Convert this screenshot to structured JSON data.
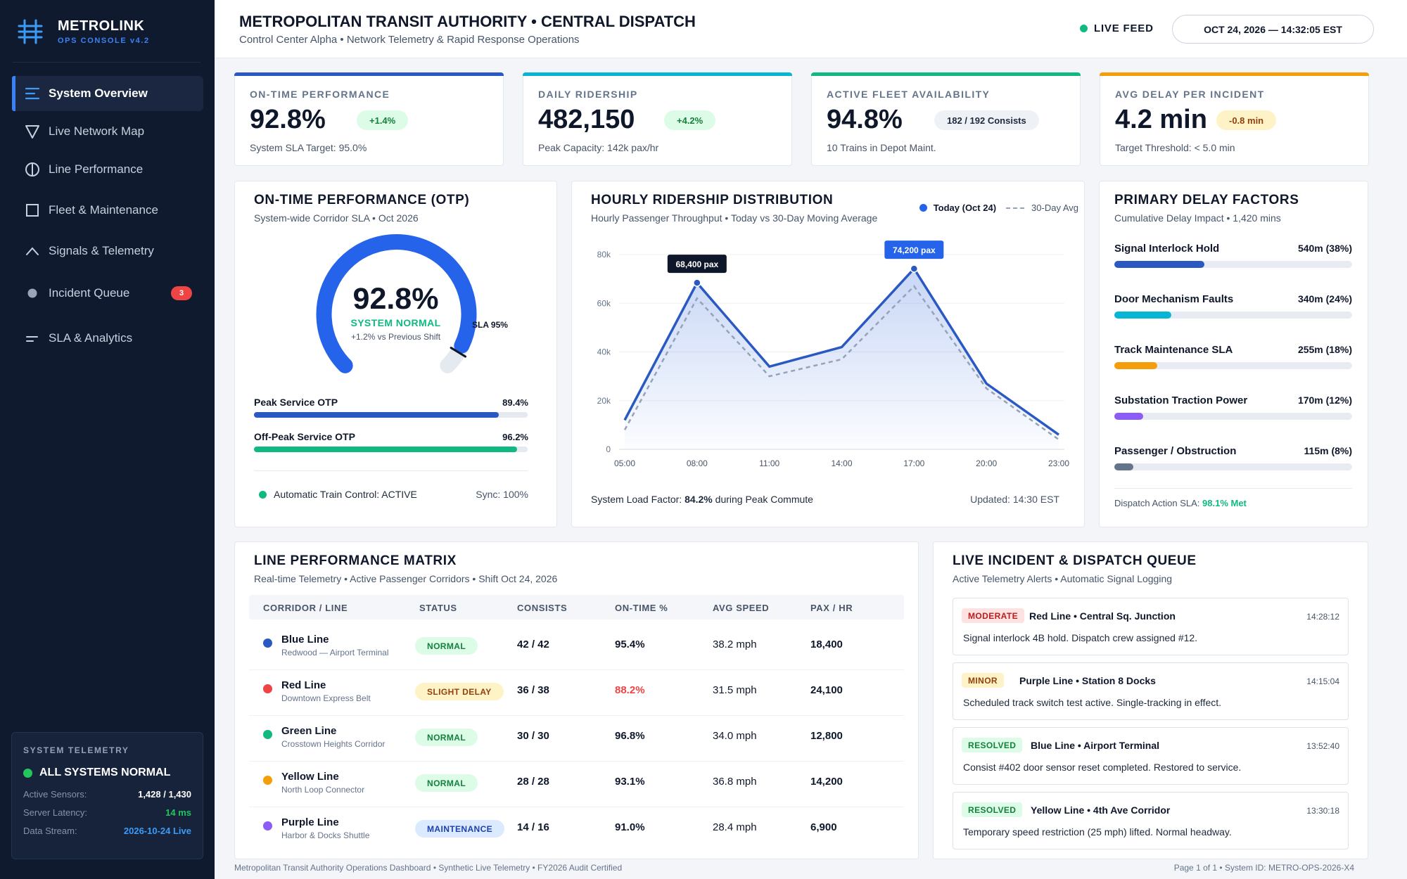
{
  "brand": {
    "title": "METROLINK",
    "subtitle": "OPS CONSOLE v4.2"
  },
  "sidebar": {
    "items": [
      {
        "label": "System Overview",
        "icon": "menu-lines-icon",
        "active": true
      },
      {
        "label": "Live Network Map",
        "icon": "triangle-down-icon"
      },
      {
        "label": "Line Performance",
        "icon": "half-circle-icon"
      },
      {
        "label": "Fleet & Maintenance",
        "icon": "square-icon"
      },
      {
        "label": "Signals & Telemetry",
        "icon": "chevron-up-icon"
      },
      {
        "label": "Incident Queue",
        "icon": "dot-icon",
        "badge": "3"
      },
      {
        "label": "SLA & Analytics",
        "icon": "short-lines-icon"
      }
    ]
  },
  "telemetry": {
    "heading": "SYSTEM TELEMETRY",
    "status": "ALL SYSTEMS NORMAL",
    "rows": [
      {
        "key": "Active Sensors:",
        "value": "1,428 / 1,430",
        "color": "#ffffff"
      },
      {
        "key": "Server Latency:",
        "value": "14 ms",
        "color": "#22c55e"
      },
      {
        "key": "Data Stream:",
        "value": "2026-10-24 Live",
        "color": "#3b9bf6"
      }
    ]
  },
  "header": {
    "title": "METROPOLITAN TRANSIT AUTHORITY • CENTRAL DISPATCH",
    "subtitle": "Control Center Alpha • Network Telemetry & Rapid Response Operations",
    "live_label": "LIVE FEED",
    "datetime": "OCT 24, 2026 — 14:32:05 EST"
  },
  "kpis": [
    {
      "label": "ON-TIME PERFORMANCE",
      "value": "92.8%",
      "pill": "+1.4%",
      "foot": "System SLA Target: 95.0%",
      "accent": "#2b59c3",
      "pill_bg": "#dcfce7",
      "pill_fg": "#15803d"
    },
    {
      "label": "DAILY RIDERSHIP",
      "value": "482,150",
      "pill": "+4.2%",
      "foot": "Peak Capacity: 142k pax/hr",
      "accent": "#06b6d4",
      "pill_bg": "#dcfce7",
      "pill_fg": "#15803d"
    },
    {
      "label": "ACTIVE FLEET AVAILABILITY",
      "value": "94.8%",
      "pill": "182 / 192 Consists",
      "foot": "10 Trains in Depot Maint.",
      "accent": "#10b981",
      "pill_bg": "#eef2f7",
      "pill_fg": "#1e293b"
    },
    {
      "label": "AVG DELAY PER INCIDENT",
      "value": "4.2 min",
      "pill": "-0.8 min",
      "foot": "Target Threshold: < 5.0 min",
      "accent": "#f59e0b",
      "pill_bg": "#fef3c7",
      "pill_fg": "#92400e"
    }
  ],
  "otp": {
    "title": "ON-TIME PERFORMANCE (OTP)",
    "subtitle": "System-wide Corridor SLA • Oct 2026",
    "gauge_value": "92.8%",
    "gauge_fraction": 0.928,
    "status": "SYSTEM NORMAL",
    "delta": "+1.2% vs Previous Shift",
    "sla_label": "SLA 95%",
    "sla_fraction": 0.95,
    "bars": [
      {
        "label": "Peak Service OTP",
        "value": "89.4%",
        "fraction": 0.894,
        "color": "#2b59c3"
      },
      {
        "label": "Off-Peak Service OTP",
        "value": "96.2%",
        "fraction": 0.962,
        "color": "#10b981"
      }
    ],
    "atc": "Automatic Train Control: ACTIVE",
    "sync": "Sync: 100%"
  },
  "ridership": {
    "title": "HOURLY RIDERSHIP DISTRIBUTION",
    "subtitle": "Hourly Passenger Throughput • Today vs 30-Day Moving Average",
    "legend_today": "Today (Oct 24)",
    "legend_avg": "30-Day Avg",
    "foot_prefix": "System Load Factor: ",
    "foot_value": "84.2%",
    "foot_suffix": " during Peak Commute",
    "updated": "Updated: 14:30 EST"
  },
  "chart_data": {
    "type": "line",
    "x": [
      "05:00",
      "08:00",
      "11:00",
      "14:00",
      "17:00",
      "20:00",
      "23:00"
    ],
    "series": [
      {
        "name": "Today (Oct 24)",
        "values": [
          12000,
          68400,
          34000,
          42000,
          74200,
          27000,
          6000
        ],
        "color": "#2b59c3"
      },
      {
        "name": "30-Day Avg",
        "values": [
          8000,
          62000,
          30000,
          37000,
          67000,
          25000,
          4000
        ],
        "color": "#94a3b8"
      }
    ],
    "annotations": [
      {
        "x": "08:00",
        "label": "68,400 pax",
        "series": 0,
        "bg": "#0f172a"
      },
      {
        "x": "17:00",
        "label": "74,200 pax",
        "series": 0,
        "bg": "#2563eb"
      }
    ],
    "yticks": [
      0,
      20000,
      40000,
      60000,
      80000
    ],
    "ytick_labels": [
      "0",
      "20k",
      "40k",
      "60k",
      "80k"
    ],
    "ylim": [
      0,
      80000
    ],
    "grid": true
  },
  "delays": {
    "title": "PRIMARY DELAY FACTORS",
    "subtitle": "Cumulative Delay Impact • 1,420 mins",
    "items": [
      {
        "name": "Signal Interlock Hold",
        "value": "540m (38%)",
        "fraction": 0.38,
        "color": "#2b59c3"
      },
      {
        "name": "Door Mechanism Faults",
        "value": "340m (24%)",
        "fraction": 0.24,
        "color": "#06b6d4"
      },
      {
        "name": "Track Maintenance SLA",
        "value": "255m (18%)",
        "fraction": 0.18,
        "color": "#f59e0b"
      },
      {
        "name": "Substation Traction Power",
        "value": "170m (12%)",
        "fraction": 0.12,
        "color": "#8b5cf6"
      },
      {
        "name": "Passenger / Obstruction",
        "value": "115m (8%)",
        "fraction": 0.08,
        "color": "#64748b"
      }
    ],
    "sla_prefix": "Dispatch Action SLA: ",
    "sla_value": "98.1% Met"
  },
  "matrix": {
    "title": "LINE PERFORMANCE MATRIX",
    "subtitle": "Real-time Telemetry • Active Passenger Corridors • Shift Oct 24, 2026",
    "columns": [
      "CORRIDOR / LINE",
      "STATUS",
      "CONSISTS",
      "ON-TIME %",
      "AVG SPEED",
      "PAX / HR"
    ],
    "rows": [
      {
        "line": "Blue Line",
        "sub": "Redwood — Airport Terminal",
        "color": "#2b59c3",
        "status": "NORMAL",
        "status_bg": "#dcfce7",
        "status_fg": "#15803d",
        "consists": "42 / 42",
        "otp": "95.4%",
        "otp_color": "#0f172a",
        "speed": "38.2 mph",
        "pax": "18,400"
      },
      {
        "line": "Red Line",
        "sub": "Downtown Express Belt",
        "color": "#ef4444",
        "status": "SLIGHT DELAY",
        "status_bg": "#fef3c7",
        "status_fg": "#92400e",
        "consists": "36 / 38",
        "otp": "88.2%",
        "otp_color": "#ef4444",
        "speed": "31.5 mph",
        "pax": "24,100"
      },
      {
        "line": "Green Line",
        "sub": "Crosstown Heights Corridor",
        "color": "#10b981",
        "status": "NORMAL",
        "status_bg": "#dcfce7",
        "status_fg": "#15803d",
        "consists": "30 / 30",
        "otp": "96.8%",
        "otp_color": "#0f172a",
        "speed": "34.0 mph",
        "pax": "12,800"
      },
      {
        "line": "Yellow Line",
        "sub": "North Loop Connector",
        "color": "#f59e0b",
        "status": "NORMAL",
        "status_bg": "#dcfce7",
        "status_fg": "#15803d",
        "consists": "28 / 28",
        "otp": "93.1%",
        "otp_color": "#0f172a",
        "speed": "36.8 mph",
        "pax": "14,200"
      },
      {
        "line": "Purple Line",
        "sub": "Harbor & Docks Shuttle",
        "color": "#8b5cf6",
        "status": "MAINTENANCE",
        "status_bg": "#dbeafe",
        "status_fg": "#1e40af",
        "consists": "14 / 16",
        "otp": "91.0%",
        "otp_color": "#0f172a",
        "speed": "28.4 mph",
        "pax": "6,900"
      }
    ]
  },
  "incidents": {
    "title": "LIVE INCIDENT & DISPATCH QUEUE",
    "subtitle": "Active Telemetry Alerts • Automatic Signal Logging",
    "items": [
      {
        "tag": "MODERATE",
        "tag_bg": "#fee2e2",
        "tag_fg": "#b91c1c",
        "title": "Red Line • Central Sq. Junction",
        "time": "14:28:12",
        "desc": "Signal interlock 4B hold. Dispatch crew assigned #12."
      },
      {
        "tag": "MINOR",
        "tag_bg": "#fef3c7",
        "tag_fg": "#92400e",
        "title": "Purple Line • Station 8 Docks",
        "time": "14:15:04",
        "desc": "Scheduled track switch test active. Single-tracking in effect."
      },
      {
        "tag": "RESOLVED",
        "tag_bg": "#dcfce7",
        "tag_fg": "#15803d",
        "title": "Blue Line • Airport Terminal",
        "time": "13:52:40",
        "desc": "Consist #402 door sensor reset completed. Restored to service."
      },
      {
        "tag": "RESOLVED",
        "tag_bg": "#dcfce7",
        "tag_fg": "#15803d",
        "title": "Yellow Line • 4th Ave Corridor",
        "time": "13:30:18",
        "desc": "Temporary speed restriction (25 mph) lifted. Normal headway."
      }
    ]
  },
  "footer": {
    "left": "Metropolitan Transit Authority Operations Dashboard • Synthetic Live Telemetry • FY2026 Audit Certified",
    "right": "Page 1 of 1 • System ID: METRO-OPS-2026-X4"
  }
}
